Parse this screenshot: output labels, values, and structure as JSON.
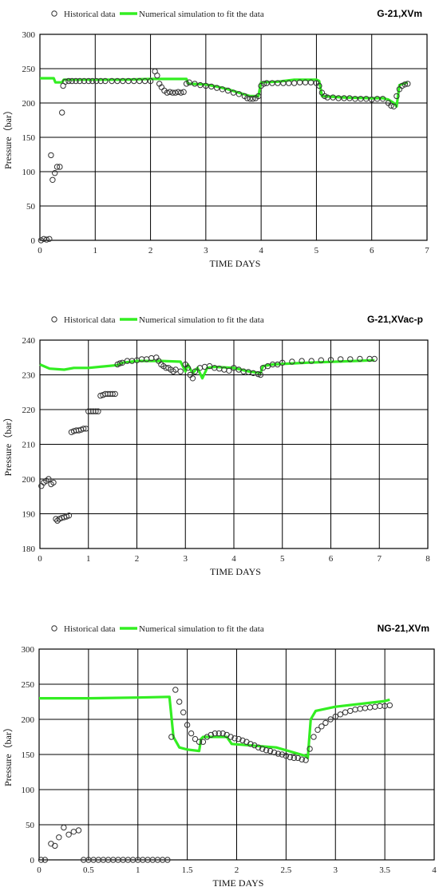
{
  "legend": {
    "historical": "Historical data",
    "simulation": "Numerical simulation to fit the data"
  },
  "colors": {
    "simulation_line": "#33ee22",
    "marker_stroke": "#333333",
    "grid": "#000000"
  },
  "chart_data": [
    {
      "type": "line",
      "title": "G-21,XVm",
      "xlabel": "TIME DAYS",
      "ylabel": "Pressure（bar）",
      "xlim": [
        0,
        7
      ],
      "ylim": [
        0,
        300
      ],
      "xticks": [
        "0",
        "1",
        "2",
        "3",
        "4",
        "5",
        "6",
        "7"
      ],
      "yticks": [
        "0",
        "50",
        "100",
        "150",
        "200",
        "250",
        "300"
      ],
      "grid": true,
      "legend_position": "top",
      "series": [
        {
          "name": "Historical data",
          "kind": "markers",
          "x": [
            0.02,
            0.07,
            0.12,
            0.17,
            0.2,
            0.23,
            0.27,
            0.31,
            0.36,
            0.4,
            0.42,
            0.46,
            0.52,
            0.58,
            0.65,
            0.72,
            0.8,
            0.88,
            0.95,
            1.02,
            1.1,
            1.18,
            1.3,
            1.4,
            1.5,
            1.6,
            1.7,
            1.8,
            1.9,
            2.0,
            2.08,
            2.12,
            2.16,
            2.2,
            2.25,
            2.3,
            2.35,
            2.4,
            2.45,
            2.5,
            2.55,
            2.6,
            2.65,
            2.7,
            2.8,
            2.9,
            3.0,
            3.1,
            3.2,
            3.3,
            3.4,
            3.5,
            3.6,
            3.7,
            3.75,
            3.8,
            3.85,
            3.9,
            3.95,
            4.0,
            4.05,
            4.1,
            4.2,
            4.3,
            4.4,
            4.5,
            4.6,
            4.7,
            4.8,
            4.9,
            5.0,
            5.05,
            5.1,
            5.15,
            5.2,
            5.3,
            5.4,
            5.5,
            5.6,
            5.7,
            5.8,
            5.9,
            6.0,
            6.1,
            6.2,
            6.3,
            6.35,
            6.4,
            6.45,
            6.5,
            6.55,
            6.6,
            6.65
          ],
          "y": [
            0,
            2,
            1,
            2,
            124,
            88,
            98,
            107,
            107,
            186,
            225,
            231,
            232,
            232,
            232,
            232,
            232,
            232,
            232,
            232,
            232,
            232,
            232,
            232,
            232,
            232,
            232,
            232,
            232,
            232,
            246,
            240,
            228,
            223,
            218,
            215,
            216,
            215,
            215,
            216,
            215,
            216,
            228,
            230,
            228,
            226,
            225,
            224,
            222,
            220,
            218,
            215,
            213,
            210,
            207,
            206,
            206,
            207,
            210,
            225,
            228,
            229,
            229,
            229,
            229,
            229,
            229,
            230,
            230,
            230,
            229,
            225,
            215,
            210,
            208,
            208,
            207,
            207,
            207,
            206,
            206,
            206,
            205,
            206,
            206,
            200,
            196,
            195,
            210,
            220,
            225,
            227,
            228
          ]
        },
        {
          "name": "Numerical simulation to fit the data",
          "kind": "line",
          "x": [
            0,
            0.25,
            0.28,
            0.4,
            0.43,
            1.0,
            1.5,
            2.0,
            2.5,
            2.65,
            2.68,
            3.0,
            3.2,
            3.4,
            3.6,
            3.8,
            3.9,
            3.95,
            4.0,
            4.3,
            4.6,
            5.0,
            5.05,
            5.1,
            5.5,
            6.0,
            6.2,
            6.3,
            6.4,
            6.45,
            6.5,
            6.6,
            6.65
          ],
          "y": [
            236,
            236,
            230,
            230,
            234,
            234,
            234,
            235,
            235,
            235,
            228,
            227,
            224,
            220,
            215,
            210,
            210,
            210,
            230,
            231,
            234,
            234,
            232,
            210,
            208,
            207,
            207,
            205,
            200,
            195,
            226,
            229,
            230
          ]
        }
      ]
    },
    {
      "type": "line",
      "title": "G-21,XVac-p",
      "xlabel": "TIME DAYS",
      "ylabel": "Pressure（bar）",
      "xlim": [
        0,
        8
      ],
      "ylim": [
        180,
        240
      ],
      "xticks": [
        "0",
        "1",
        "2",
        "3",
        "4",
        "5",
        "6",
        "7",
        "8"
      ],
      "yticks": [
        "180",
        "190",
        "200",
        "210",
        "220",
        "230",
        "240"
      ],
      "grid": true,
      "legend_position": "top",
      "series": [
        {
          "name": "Historical data",
          "kind": "markers",
          "x": [
            0.03,
            0.08,
            0.13,
            0.18,
            0.23,
            0.28,
            0.33,
            0.36,
            0.4,
            0.45,
            0.5,
            0.55,
            0.6,
            0.65,
            0.7,
            0.75,
            0.8,
            0.85,
            0.9,
            0.95,
            1.0,
            1.05,
            1.1,
            1.15,
            1.2,
            1.25,
            1.3,
            1.35,
            1.4,
            1.45,
            1.5,
            1.55,
            1.6,
            1.65,
            1.7,
            1.8,
            1.9,
            2.0,
            2.1,
            2.2,
            2.3,
            2.4,
            2.45,
            2.5,
            2.55,
            2.6,
            2.65,
            2.7,
            2.75,
            2.8,
            2.9,
            3.0,
            3.05,
            3.1,
            3.15,
            3.2,
            3.3,
            3.4,
            3.5,
            3.6,
            3.7,
            3.8,
            3.9,
            4.0,
            4.1,
            4.2,
            4.3,
            4.4,
            4.5,
            4.55,
            4.6,
            4.7,
            4.8,
            4.9,
            5.0,
            5.2,
            5.4,
            5.6,
            5.8,
            6.0,
            6.2,
            6.4,
            6.6,
            6.8,
            6.9
          ],
          "y": [
            198,
            199,
            199.5,
            200,
            198.5,
            199,
            188.5,
            188,
            188.5,
            188.8,
            189,
            189.2,
            189.5,
            213.5,
            213.8,
            214,
            214,
            214.2,
            214.5,
            214.5,
            219.5,
            219.5,
            219.5,
            219.5,
            219.5,
            224,
            224.2,
            224.5,
            224.5,
            224.5,
            224.5,
            224.5,
            233,
            233.3,
            233.5,
            234,
            234,
            234.2,
            234.5,
            234.5,
            234.8,
            235,
            234,
            233,
            232.5,
            232,
            232,
            231.5,
            231,
            231.5,
            231,
            233,
            232,
            230,
            229,
            231,
            232,
            232.3,
            232.5,
            232,
            231.8,
            231.5,
            231.2,
            232,
            231.5,
            231,
            230.8,
            230.5,
            230.2,
            230,
            232,
            232.5,
            233,
            233,
            233.5,
            233.8,
            234,
            234,
            234.2,
            234.3,
            234.5,
            234.5,
            234.6,
            234.6,
            234.6
          ]
        },
        {
          "name": "Numerical simulation to fit the data",
          "kind": "line",
          "x": [
            0,
            0.2,
            0.5,
            0.7,
            1.0,
            1.6,
            1.7,
            2.0,
            2.5,
            2.9,
            3.0,
            3.05,
            3.15,
            3.25,
            3.35,
            3.45,
            3.6,
            4.0,
            4.3,
            4.55,
            4.6,
            4.8,
            5.5,
            6.5,
            6.9
          ],
          "y": [
            233,
            231.8,
            231.5,
            232,
            232,
            232.8,
            233.5,
            234,
            234,
            233.8,
            231,
            233,
            230.5,
            232,
            229,
            232,
            232.3,
            232,
            231,
            230.5,
            232.5,
            233,
            233.5,
            234,
            234.2
          ]
        }
      ]
    },
    {
      "type": "line",
      "title": "NG-21,XVm",
      "xlabel": "TIME DAYS",
      "ylabel": "Pressure（bar）",
      "xlim": [
        0,
        4
      ],
      "ylim": [
        0,
        300
      ],
      "xticks": [
        "0",
        "0.5",
        "1",
        "1.5",
        "2",
        "2.5",
        "3",
        "3.5",
        "4"
      ],
      "yticks": [
        "0",
        "50",
        "100",
        "150",
        "200",
        "250",
        "300"
      ],
      "grid": true,
      "legend_position": "top",
      "series": [
        {
          "name": "Historical data",
          "kind": "markers",
          "x": [
            0.02,
            0.06,
            0.12,
            0.16,
            0.2,
            0.25,
            0.3,
            0.35,
            0.4,
            0.45,
            0.5,
            0.55,
            0.6,
            0.65,
            0.7,
            0.75,
            0.8,
            0.85,
            0.9,
            0.95,
            1.0,
            1.05,
            1.1,
            1.15,
            1.2,
            1.25,
            1.3,
            1.34,
            1.38,
            1.42,
            1.46,
            1.5,
            1.54,
            1.58,
            1.62,
            1.66,
            1.7,
            1.74,
            1.78,
            1.82,
            1.86,
            1.9,
            1.94,
            1.98,
            2.02,
            2.06,
            2.1,
            2.14,
            2.18,
            2.22,
            2.26,
            2.3,
            2.34,
            2.38,
            2.42,
            2.46,
            2.5,
            2.54,
            2.58,
            2.62,
            2.66,
            2.7,
            2.74,
            2.78,
            2.82,
            2.86,
            2.9,
            2.95,
            3.0,
            3.05,
            3.1,
            3.15,
            3.2,
            3.25,
            3.3,
            3.35,
            3.4,
            3.45,
            3.5,
            3.55
          ],
          "y": [
            0,
            0,
            23,
            20,
            32,
            46,
            36,
            40,
            42,
            0,
            0,
            0,
            0,
            0,
            0,
            0,
            0,
            0,
            0,
            0,
            0,
            0,
            0,
            0,
            0,
            0,
            0,
            175,
            242,
            225,
            210,
            192,
            180,
            172,
            168,
            168,
            175,
            178,
            180,
            180,
            180,
            178,
            175,
            173,
            172,
            170,
            168,
            165,
            163,
            160,
            158,
            156,
            155,
            153,
            151,
            150,
            148,
            146,
            145,
            145,
            143,
            142,
            158,
            175,
            185,
            190,
            195,
            200,
            204,
            207,
            210,
            212,
            214,
            215,
            216,
            217,
            218,
            219,
            219,
            220
          ]
        },
        {
          "name": "Numerical simulation to fit the data",
          "kind": "line",
          "x": [
            0,
            0.5,
            1.0,
            1.32,
            1.36,
            1.42,
            1.5,
            1.62,
            1.64,
            1.66,
            1.9,
            1.95,
            2.4,
            2.7,
            2.72,
            2.75,
            2.8,
            3.0,
            3.5,
            3.55
          ],
          "y": [
            230,
            230,
            231,
            232,
            175,
            160,
            157,
            155,
            172,
            175,
            175,
            165,
            160,
            148,
            145,
            200,
            212,
            218,
            226,
            228
          ]
        }
      ]
    }
  ]
}
